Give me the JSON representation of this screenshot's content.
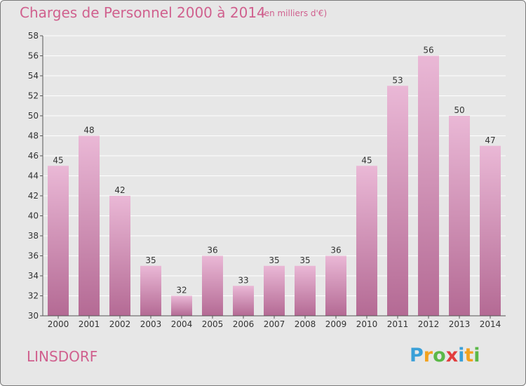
{
  "header": {
    "title": "Charges de Personnel 2000 à 2014",
    "subtitle": "(en milliers d'€)"
  },
  "commune": "LINSDORF",
  "logo": {
    "text": "Proxiti",
    "letters": [
      {
        "ch": "P",
        "color": "#3aa0d8"
      },
      {
        "ch": "r",
        "color": "#f3a21f"
      },
      {
        "ch": "o",
        "color": "#5bb848"
      },
      {
        "ch": "x",
        "color": "#e23d3d"
      },
      {
        "ch": "i",
        "color": "#3aa0d8"
      },
      {
        "ch": "t",
        "color": "#f3a21f"
      },
      {
        "ch": "i",
        "color": "#5bb848"
      }
    ]
  },
  "colors": {
    "bar_light": "#eab8d6",
    "bar_dark": "#b46a94",
    "accent": "#d0608e"
  },
  "chart_data": {
    "type": "bar",
    "categories": [
      "2000",
      "2001",
      "2002",
      "2003",
      "2004",
      "2005",
      "2006",
      "2007",
      "2008",
      "2009",
      "2010",
      "2011",
      "2012",
      "2013",
      "2014"
    ],
    "values": [
      45,
      48,
      42,
      35,
      32,
      36,
      33,
      35,
      35,
      36,
      45,
      53,
      56,
      50,
      47
    ],
    "ylim": [
      30,
      58
    ],
    "yticks": [
      30,
      32,
      34,
      36,
      38,
      40,
      42,
      44,
      46,
      48,
      50,
      52,
      54,
      56,
      58
    ],
    "grid": true,
    "title": "Charges de Personnel 2000 à 2014",
    "ylabel": "",
    "xlabel": ""
  }
}
